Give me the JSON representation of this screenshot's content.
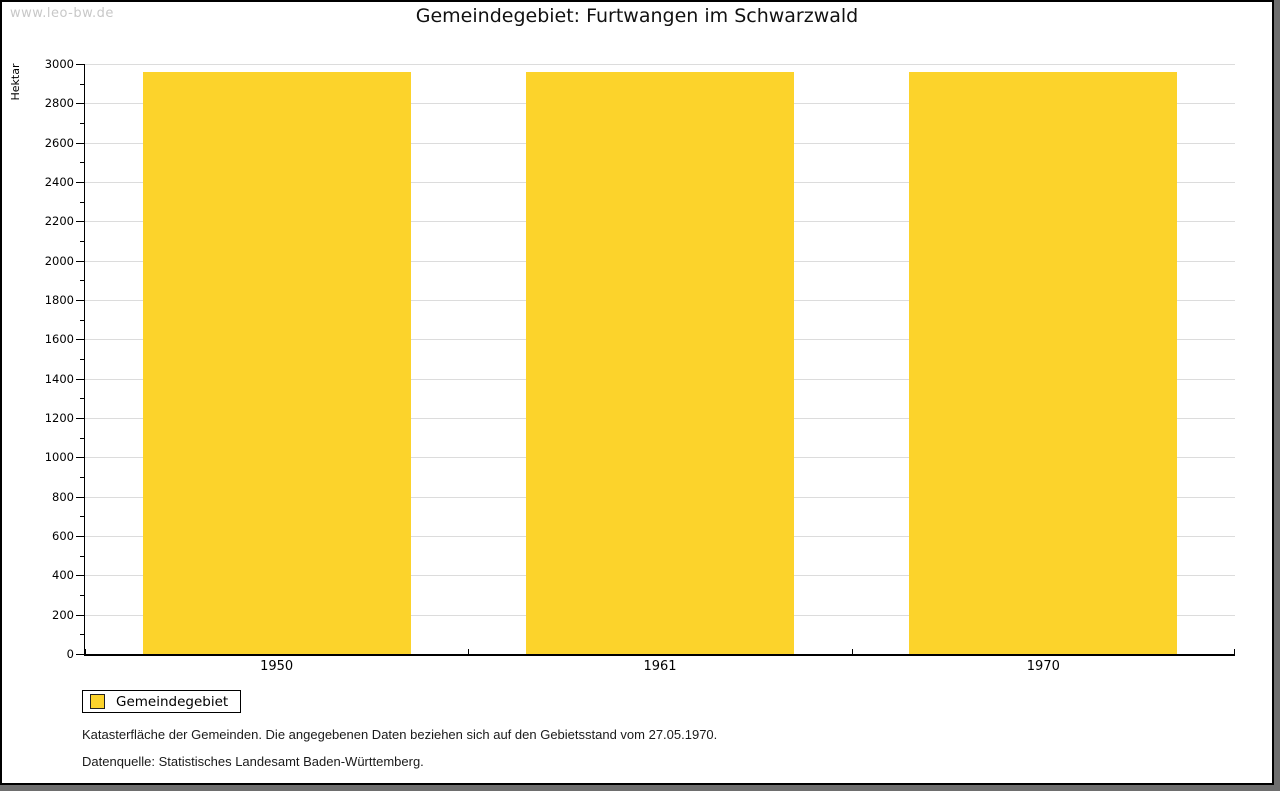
{
  "page": {
    "watermark": "www.leo-bw.de"
  },
  "chart_data": {
    "type": "bar",
    "title": "Gemeindegebiet: Furtwangen im Schwarzwald",
    "categories": [
      "1950",
      "1961",
      "1970"
    ],
    "series": [
      {
        "name": "Gemeindegebiet",
        "color": "#fcd32b",
        "values": [
          2959,
          2959,
          2959
        ]
      }
    ],
    "xlabel": "",
    "ylabel": "Hektar",
    "ylim": [
      0,
      3000
    ],
    "y_tick_step": 200,
    "y_minor_tick_step": 100,
    "grid": true,
    "gridline_color": "#dcdcdc",
    "legend_position": "bottom-left"
  },
  "footnotes": {
    "line1": "Katasterfläche der Gemeinden. Die angegebenen Daten beziehen sich auf den Gebietsstand vom 27.05.1970.",
    "line2": "Datenquelle: Statistisches Landesamt Baden-Württemberg."
  },
  "colors": {
    "bar": "#fcd32b",
    "gridline": "#dcdcdc",
    "watermark_text": "#c8c8c8",
    "frame_shadow": "#6e6e6e"
  }
}
